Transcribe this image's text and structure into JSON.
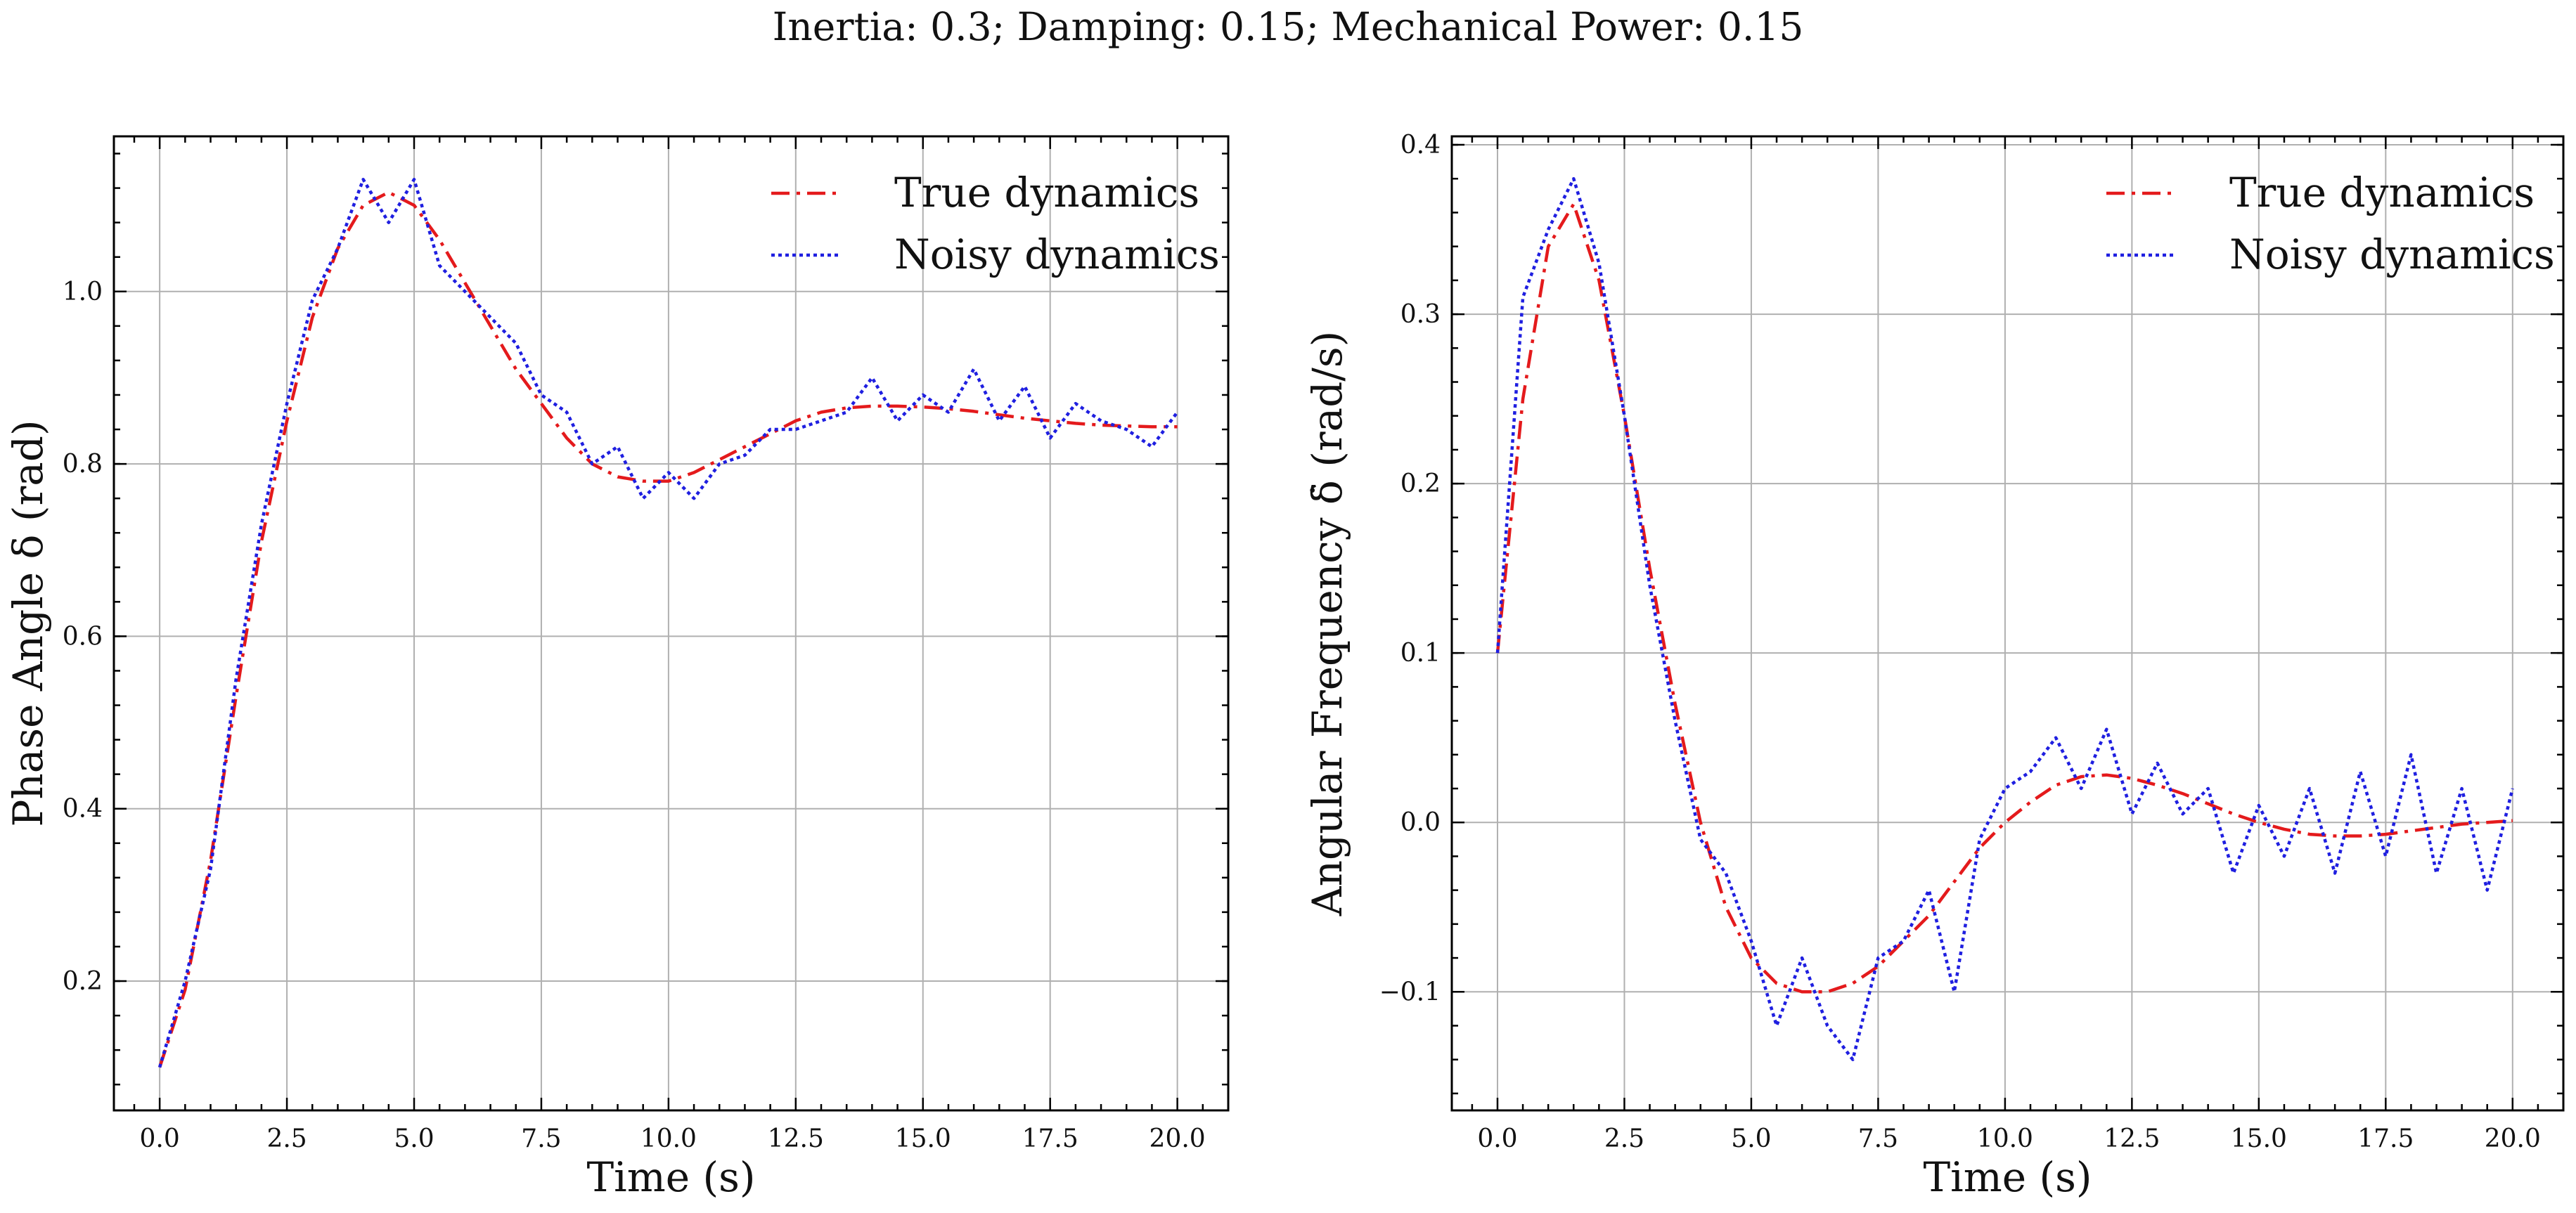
{
  "figure": {
    "title": "Inertia: 0.3; Damping: 0.15; Mechanical Power: 0.15"
  },
  "colors": {
    "true_dynamics": "#e41a1c",
    "noisy_dynamics": "#1f1fe0",
    "grid": "#b0b0b0"
  },
  "chart_data": [
    {
      "type": "line",
      "xlabel": "Time (s)",
      "ylabel": "Phase Angle δ (rad)",
      "xlim": [
        -0.9,
        21.0
      ],
      "ylim": [
        0.05,
        1.18
      ],
      "xticks": [
        0.0,
        2.5,
        5.0,
        7.5,
        10.0,
        12.5,
        15.0,
        17.5,
        20.0
      ],
      "xtick_labels": [
        "0.0",
        "2.5",
        "5.0",
        "7.5",
        "10.0",
        "12.5",
        "15.0",
        "17.5",
        "20.0"
      ],
      "yticks": [
        0.2,
        0.4,
        0.6,
        0.8,
        1.0
      ],
      "ytick_labels": [
        "0.2",
        "0.4",
        "0.6",
        "0.8",
        "1.0"
      ],
      "grid": true,
      "legend_position": "top-right",
      "series": [
        {
          "name": "True dynamics",
          "style": "dashdot",
          "color": "#e41a1c",
          "x": [
            0,
            0.5,
            1,
            1.5,
            2,
            2.5,
            3,
            3.5,
            4,
            4.5,
            5,
            5.5,
            6,
            6.5,
            7,
            7.5,
            8,
            8.5,
            9,
            9.5,
            10,
            10.5,
            11,
            11.5,
            12,
            12.5,
            13,
            13.5,
            14,
            14.5,
            15,
            15.5,
            16,
            16.5,
            17,
            17.5,
            18,
            18.5,
            19,
            19.5,
            20
          ],
          "y": [
            0.1,
            0.19,
            0.34,
            0.53,
            0.71,
            0.85,
            0.97,
            1.05,
            1.1,
            1.115,
            1.1,
            1.06,
            1.01,
            0.96,
            0.91,
            0.87,
            0.83,
            0.8,
            0.785,
            0.78,
            0.78,
            0.79,
            0.805,
            0.82,
            0.835,
            0.85,
            0.86,
            0.865,
            0.867,
            0.867,
            0.866,
            0.864,
            0.861,
            0.857,
            0.853,
            0.85,
            0.847,
            0.845,
            0.844,
            0.843,
            0.843
          ]
        },
        {
          "name": "Noisy dynamics",
          "style": "dotted",
          "color": "#1f1fe0",
          "x": [
            0,
            0.5,
            1,
            1.5,
            2,
            2.5,
            3,
            3.5,
            4,
            4.5,
            5,
            5.5,
            6,
            6.5,
            7,
            7.5,
            8,
            8.5,
            9,
            9.5,
            10,
            10.5,
            11,
            11.5,
            12,
            12.5,
            13,
            13.5,
            14,
            14.5,
            15,
            15.5,
            16,
            16.5,
            17,
            17.5,
            18,
            18.5,
            19,
            19.5,
            20
          ],
          "y": [
            0.1,
            0.2,
            0.33,
            0.55,
            0.73,
            0.87,
            0.99,
            1.05,
            1.13,
            1.08,
            1.13,
            1.03,
            1.0,
            0.97,
            0.94,
            0.88,
            0.86,
            0.8,
            0.82,
            0.76,
            0.79,
            0.76,
            0.8,
            0.81,
            0.84,
            0.84,
            0.85,
            0.86,
            0.9,
            0.85,
            0.88,
            0.86,
            0.91,
            0.85,
            0.89,
            0.83,
            0.87,
            0.85,
            0.84,
            0.82,
            0.86
          ]
        }
      ]
    },
    {
      "type": "line",
      "xlabel": "Time (s)",
      "ylabel": "Angular Frequency δ̇ (rad/s)",
      "xlim": [
        -0.9,
        21.0
      ],
      "ylim": [
        -0.17,
        0.405
      ],
      "xticks": [
        0.0,
        2.5,
        5.0,
        7.5,
        10.0,
        12.5,
        15.0,
        17.5,
        20.0
      ],
      "xtick_labels": [
        "0.0",
        "2.5",
        "5.0",
        "7.5",
        "10.0",
        "12.5",
        "15.0",
        "17.5",
        "20.0"
      ],
      "yticks": [
        -0.1,
        0.0,
        0.1,
        0.2,
        0.3,
        0.4
      ],
      "ytick_labels": [
        "−0.1",
        "0.0",
        "0.1",
        "0.2",
        "0.3",
        "0.4"
      ],
      "grid": true,
      "legend_position": "top-right",
      "series": [
        {
          "name": "True dynamics",
          "style": "dashdot",
          "color": "#e41a1c",
          "x": [
            0,
            0.5,
            1,
            1.5,
            2,
            2.5,
            3,
            3.5,
            4,
            4.5,
            5,
            5.5,
            6,
            6.5,
            7,
            7.5,
            8,
            8.5,
            9,
            9.5,
            10,
            10.5,
            11,
            11.5,
            12,
            12.5,
            13,
            13.5,
            14,
            14.5,
            15,
            15.5,
            16,
            16.5,
            17,
            17.5,
            18,
            18.5,
            19,
            19.5,
            20
          ],
          "y": [
            0.1,
            0.25,
            0.34,
            0.365,
            0.32,
            0.24,
            0.15,
            0.07,
            0.0,
            -0.05,
            -0.08,
            -0.095,
            -0.1,
            -0.1,
            -0.095,
            -0.085,
            -0.07,
            -0.055,
            -0.035,
            -0.015,
            0.0,
            0.012,
            0.022,
            0.027,
            0.028,
            0.026,
            0.022,
            0.017,
            0.011,
            0.005,
            0.0,
            -0.004,
            -0.007,
            -0.008,
            -0.008,
            -0.007,
            -0.005,
            -0.003,
            -0.001,
            0.0,
            0.001
          ]
        },
        {
          "name": "Noisy dynamics",
          "style": "dotted",
          "color": "#1f1fe0",
          "x": [
            0,
            0.5,
            1,
            1.5,
            2,
            2.5,
            3,
            3.5,
            4,
            4.5,
            5,
            5.5,
            6,
            6.5,
            7,
            7.5,
            8,
            8.5,
            9,
            9.5,
            10,
            10.5,
            11,
            11.5,
            12,
            12.5,
            13,
            13.5,
            14,
            14.5,
            15,
            15.5,
            16,
            16.5,
            17,
            17.5,
            18,
            18.5,
            19,
            19.5,
            20
          ],
          "y": [
            0.1,
            0.31,
            0.35,
            0.38,
            0.33,
            0.24,
            0.14,
            0.06,
            -0.01,
            -0.03,
            -0.07,
            -0.12,
            -0.08,
            -0.12,
            -0.14,
            -0.08,
            -0.07,
            -0.04,
            -0.1,
            -0.01,
            0.02,
            0.03,
            0.05,
            0.02,
            0.055,
            0.005,
            0.035,
            0.005,
            0.02,
            -0.03,
            0.01,
            -0.02,
            0.02,
            -0.03,
            0.03,
            -0.02,
            0.04,
            -0.03,
            0.02,
            -0.04,
            0.02
          ]
        }
      ]
    }
  ]
}
